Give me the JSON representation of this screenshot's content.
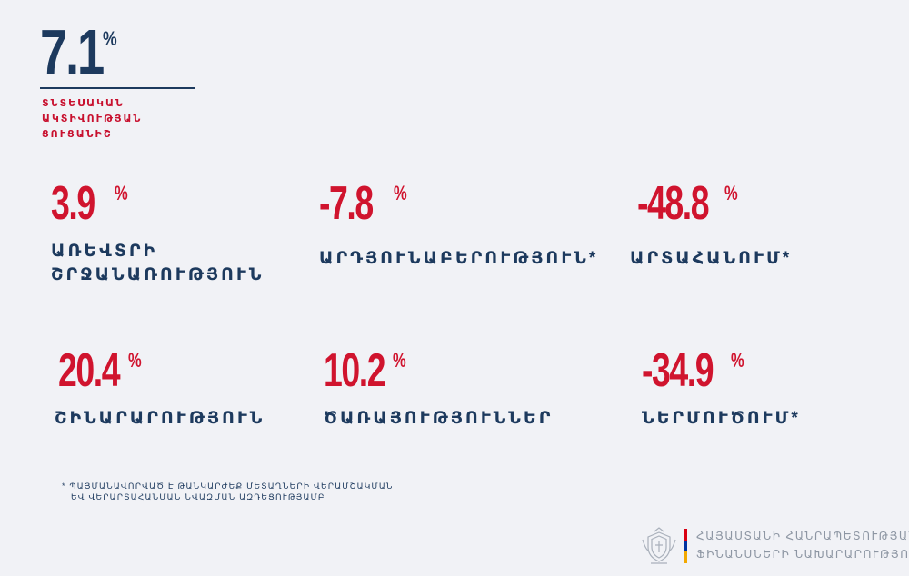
{
  "headline": {
    "value": "7.1",
    "unit": "%",
    "label": "ՏՆՏԵՍԱԿԱՆ ԱԿՏԻՎՈՒԹՅԱՆ ՑՈՒՑԱՆԻՇ"
  },
  "stats": [
    {
      "value": "3.9",
      "unit": "%",
      "label_lines": [
        "ԱՌԵՎՏՐԻ",
        "ՇՐՋԱՆԱՌՈՒԹՅՈՒՆ"
      ]
    },
    {
      "value": "-7.8",
      "unit": "%",
      "label_lines": [
        "ԱՐԴՅՈՒՆԱԲԵՐՈՒԹՅՈՒՆ*"
      ]
    },
    {
      "value": "-48.8",
      "unit": "%",
      "label_lines": [
        "ԱՐՏԱՀԱՆՈՒՄ*"
      ]
    },
    {
      "value": "20.4",
      "unit": "%",
      "label_lines": [
        "ՇԻՆԱՐԱՐՈՒԹՅՈՒՆ"
      ]
    },
    {
      "value": "10.2",
      "unit": "%",
      "label_lines": [
        "ԾԱՌԱՅՈՒԹՅՈՒՆՆԵՐ"
      ]
    },
    {
      "value": "-34.9",
      "unit": "%",
      "label_lines": [
        "ՆԵՐՄՈՒԾՈՒՄ*"
      ]
    }
  ],
  "footnote": {
    "line1": "* ՊԱՅՄԱՆԱՎՈՐՎԱԾ Է ԹԱՆԿԱՐԺԵՔ ՄԵՏԱՂՆԵՐԻ ՎԵՐԱՄՇԱԿՄԱՆ",
    "line2": "ԵՎ ՎԵՐԱՐՏԱՀԱՆՄԱՆ ՆՎԱԶՄԱՆ ԱԶԴԵՑՈՒԹՅԱՄԲ"
  },
  "ministry": {
    "line1": "ՀԱՅԱՍՏԱՆԻ ՀԱՆՐԱՊԵՏՈՒԹՅԱՆ",
    "line2": "ՖԻՆԱՆՍՆԵՐԻ ՆԱԽԱՐԱՐՈՒԹՅՈՒՆ"
  },
  "colors": {
    "accent_red": "#d0142e",
    "navy": "#1d3a5e",
    "background": "#f1f2f6",
    "flag": [
      "#d90012",
      "#0033a0",
      "#f2a800"
    ]
  }
}
